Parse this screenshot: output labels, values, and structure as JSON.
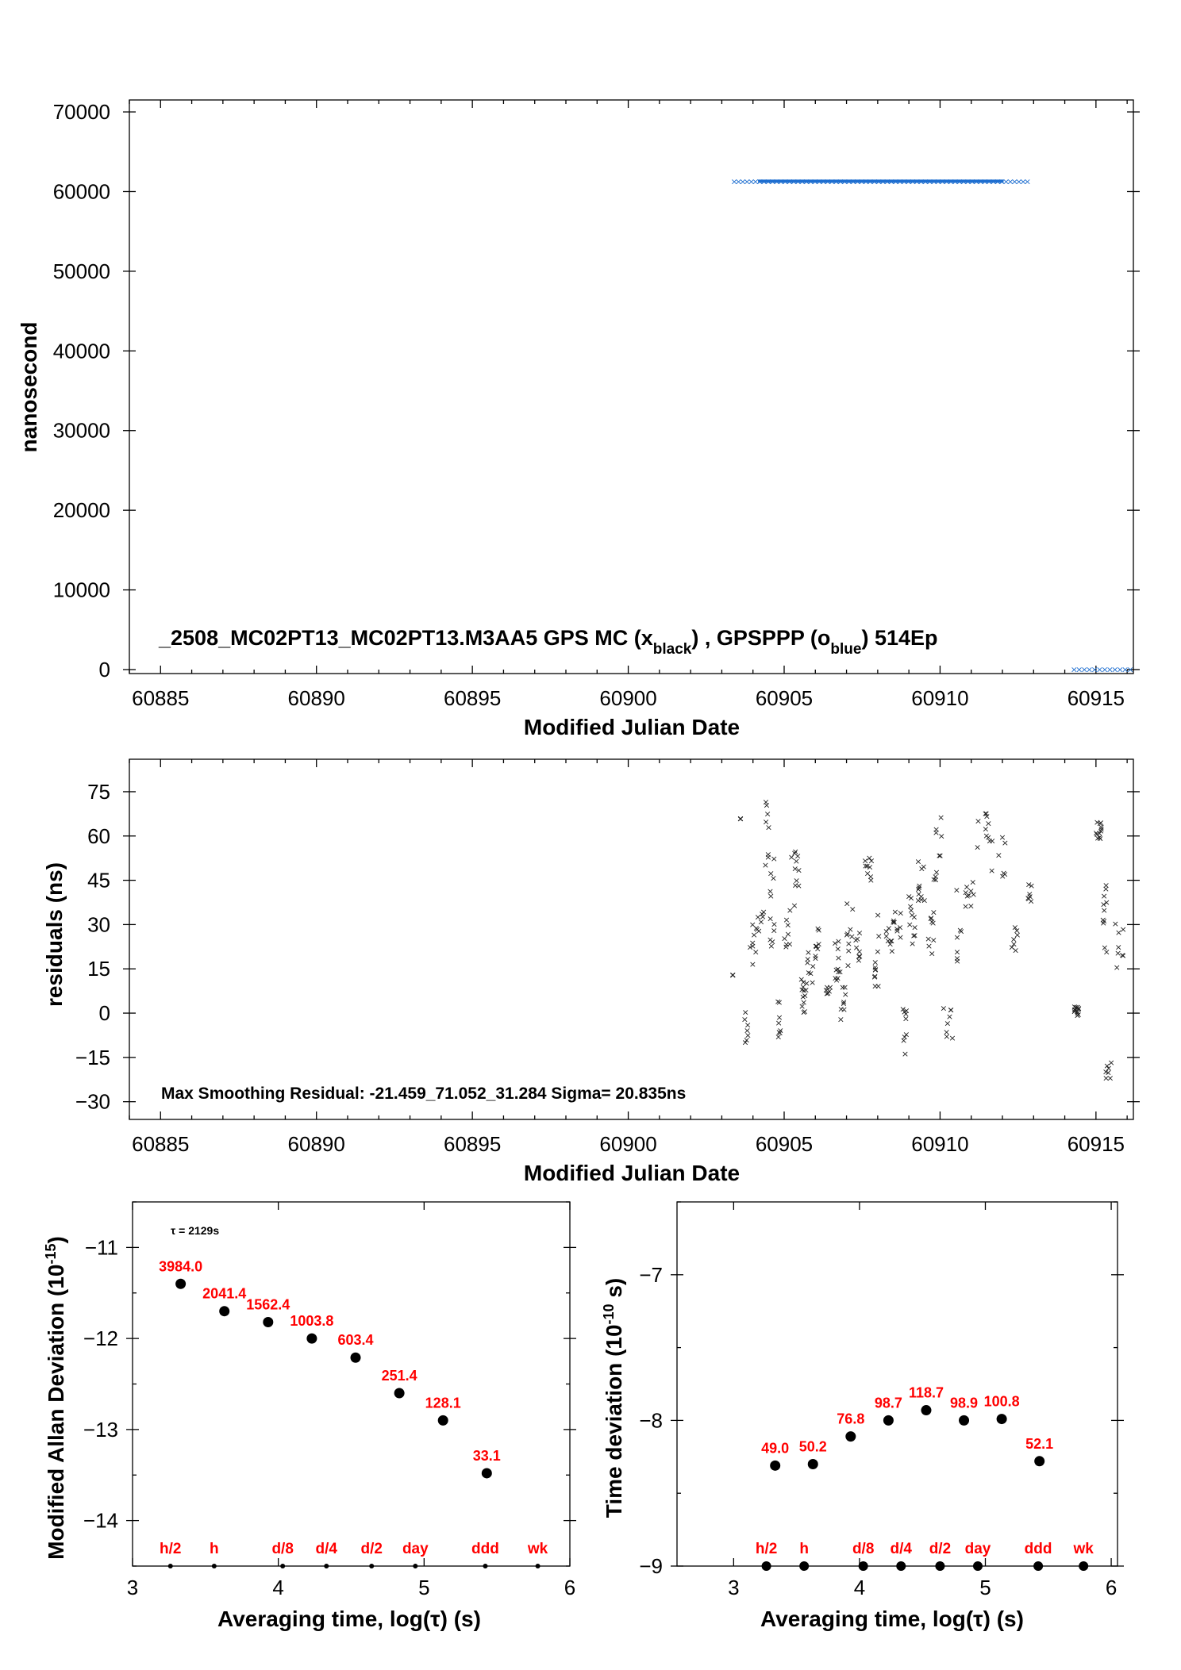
{
  "chart_data": [
    {
      "type": "scatter",
      "panel": "top",
      "title": "_2508_MC02PT13_MC02PT13.M3AA5     GPS MC (x",
      "title_sub1": "black",
      "title_mid": ") ,  GPSPPP (o",
      "title_sub2": "blue",
      "title_end": ")  514Ep",
      "xlabel": "Modified Julian Date",
      "ylabel": "nanosecond",
      "xlim": [
        60884,
        60916.2
      ],
      "ylim": [
        -500,
        71500
      ],
      "xticks": [
        "60885",
        "60890",
        "60895",
        "60900",
        "60905",
        "60910",
        "60915"
      ],
      "yticks": [
        "0",
        "10000",
        "20000",
        "30000",
        "40000",
        "50000",
        "60000",
        "70000"
      ],
      "series": [
        {
          "color": "#1f6fd0",
          "x_range": [
            60903.4,
            60912.8
          ],
          "y": 61300
        },
        {
          "color": "#1f6fd0",
          "x_range": [
            60914.3,
            60916.1
          ],
          "y": 60
        }
      ]
    },
    {
      "type": "scatter",
      "panel": "middle",
      "annotation": "Max Smoothing Residual: -21.459_71.052_31.284  Sigma= 20.835ns",
      "xlabel": "Modified Julian Date",
      "ylabel": "residuals (ns)",
      "xlim": [
        60884,
        60916.2
      ],
      "ylim": [
        -36,
        86
      ],
      "xticks": [
        "60885",
        "60890",
        "60895",
        "60900",
        "60905",
        "60910",
        "60915"
      ],
      "yticks": [
        "-30",
        "-15",
        "0",
        "15",
        "30",
        "45",
        "60",
        "75"
      ],
      "segments": [
        [
          60903.35,
          60903.35,
          13,
          13
        ],
        [
          60903.6,
          60903.6,
          66,
          66
        ],
        [
          60903.7,
          60903.85,
          -11,
          4
        ],
        [
          60903.9,
          60904.1,
          15,
          33
        ],
        [
          60904.1,
          60904.35,
          26,
          35
        ],
        [
          60904.4,
          60904.55,
          38,
          72
        ],
        [
          60904.55,
          60904.7,
          22,
          58
        ],
        [
          60904.8,
          60904.9,
          -8,
          8
        ],
        [
          60905.0,
          60905.2,
          22,
          40
        ],
        [
          60905.2,
          60905.5,
          35,
          55
        ],
        [
          60905.55,
          60905.7,
          0,
          12
        ],
        [
          60905.7,
          60905.95,
          8,
          22
        ],
        [
          60906.0,
          60906.15,
          18,
          30
        ],
        [
          60906.3,
          60906.5,
          6,
          9
        ],
        [
          60906.6,
          60906.8,
          10,
          25
        ],
        [
          60906.8,
          60907.0,
          -4,
          10
        ],
        [
          60907.0,
          60907.2,
          15,
          40
        ],
        [
          60907.3,
          60907.5,
          18,
          32
        ],
        [
          60907.6,
          60907.8,
          45,
          53
        ],
        [
          60907.9,
          60908.1,
          5,
          35
        ],
        [
          60908.2,
          60908.5,
          20,
          30
        ],
        [
          60908.5,
          60908.8,
          25,
          38
        ],
        [
          60908.8,
          60908.95,
          -14,
          2
        ],
        [
          60909.0,
          60909.3,
          22,
          40
        ],
        [
          60909.3,
          60909.5,
          38,
          56
        ],
        [
          60909.6,
          60909.8,
          20,
          36
        ],
        [
          60909.8,
          60910.05,
          35,
          68
        ],
        [
          60910.1,
          60910.4,
          -10,
          5
        ],
        [
          60910.5,
          60910.8,
          15,
          54
        ],
        [
          60910.8,
          60911.1,
          35,
          45
        ],
        [
          60911.2,
          60911.6,
          55,
          68
        ],
        [
          60911.6,
          60912.2,
          45,
          61
        ],
        [
          60912.3,
          60912.5,
          20,
          32
        ],
        [
          60912.8,
          60913.0,
          38,
          44
        ],
        [
          60914.3,
          60914.45,
          -1,
          3
        ],
        [
          60915.0,
          60915.2,
          58,
          67
        ],
        [
          60915.2,
          60915.35,
          20,
          44
        ],
        [
          60915.3,
          60915.5,
          -22,
          -15
        ],
        [
          60915.6,
          60916.1,
          15,
          35
        ]
      ]
    },
    {
      "type": "scatter",
      "panel": "bottom-left",
      "xlabel": "Averaging time, log(τ) (s)",
      "ylabel": "Modified Allan Deviation (10",
      "ylabel_sup": "-15",
      "ylabel_end": ")",
      "tau_label": "τ = 2129s",
      "xlim": [
        3,
        6
      ],
      "ylim": [
        -14.5,
        -10.5
      ],
      "xticks": [
        "3",
        "4",
        "5",
        "6"
      ],
      "yticks": [
        "-11",
        "-12",
        "-13",
        "-14"
      ],
      "x": [
        3.33,
        3.63,
        3.93,
        4.23,
        4.53,
        4.83,
        5.13,
        5.43
      ],
      "y": [
        -11.4,
        -11.7,
        -11.82,
        -12.0,
        -12.21,
        -12.6,
        -12.9,
        -13.48
      ],
      "labels": [
        "3984.0",
        "2041.4",
        "1562.4",
        "1003.8",
        "603.4",
        "251.4",
        "128.1",
        "33.1"
      ],
      "markers": [
        {
          "x": 3.26,
          "label": "h/2"
        },
        {
          "x": 3.56,
          "label": "h"
        },
        {
          "x": 4.03,
          "label": "d/8"
        },
        {
          "x": 4.33,
          "label": "d/4"
        },
        {
          "x": 4.64,
          "label": "d/2"
        },
        {
          "x": 4.94,
          "label": "day"
        },
        {
          "x": 5.42,
          "label": "ddd"
        },
        {
          "x": 5.78,
          "label": "wk"
        }
      ]
    },
    {
      "type": "scatter",
      "panel": "bottom-right",
      "xlabel": "Averaging time, log(τ) (s)",
      "ylabel": "Time deviation (10",
      "ylabel_sup": "-10",
      "ylabel_end": " s)",
      "xlim": [
        2.55,
        6.05
      ],
      "ylim": [
        -9,
        -6.5
      ],
      "xticks": [
        "3",
        "4",
        "5",
        "6"
      ],
      "yticks": [
        "-7",
        "-8",
        "-9"
      ],
      "x": [
        3.33,
        3.63,
        3.93,
        4.23,
        4.53,
        4.83,
        5.13,
        5.43
      ],
      "y": [
        -8.31,
        -8.3,
        -8.11,
        -8.0,
        -7.93,
        -8.0,
        -7.99,
        -8.28
      ],
      "labels": [
        "49.0",
        "50.2",
        "76.8",
        "98.7",
        "118.7",
        "98.9",
        "100.8",
        "52.1"
      ],
      "markers": [
        {
          "x": 3.26,
          "label": "h/2"
        },
        {
          "x": 3.56,
          "label": "h"
        },
        {
          "x": 4.03,
          "label": "d/8"
        },
        {
          "x": 4.33,
          "label": "d/4"
        },
        {
          "x": 4.64,
          "label": "d/2"
        },
        {
          "x": 4.94,
          "label": "day"
        },
        {
          "x": 5.42,
          "label": "ddd"
        },
        {
          "x": 5.78,
          "label": "wk"
        }
      ]
    }
  ]
}
